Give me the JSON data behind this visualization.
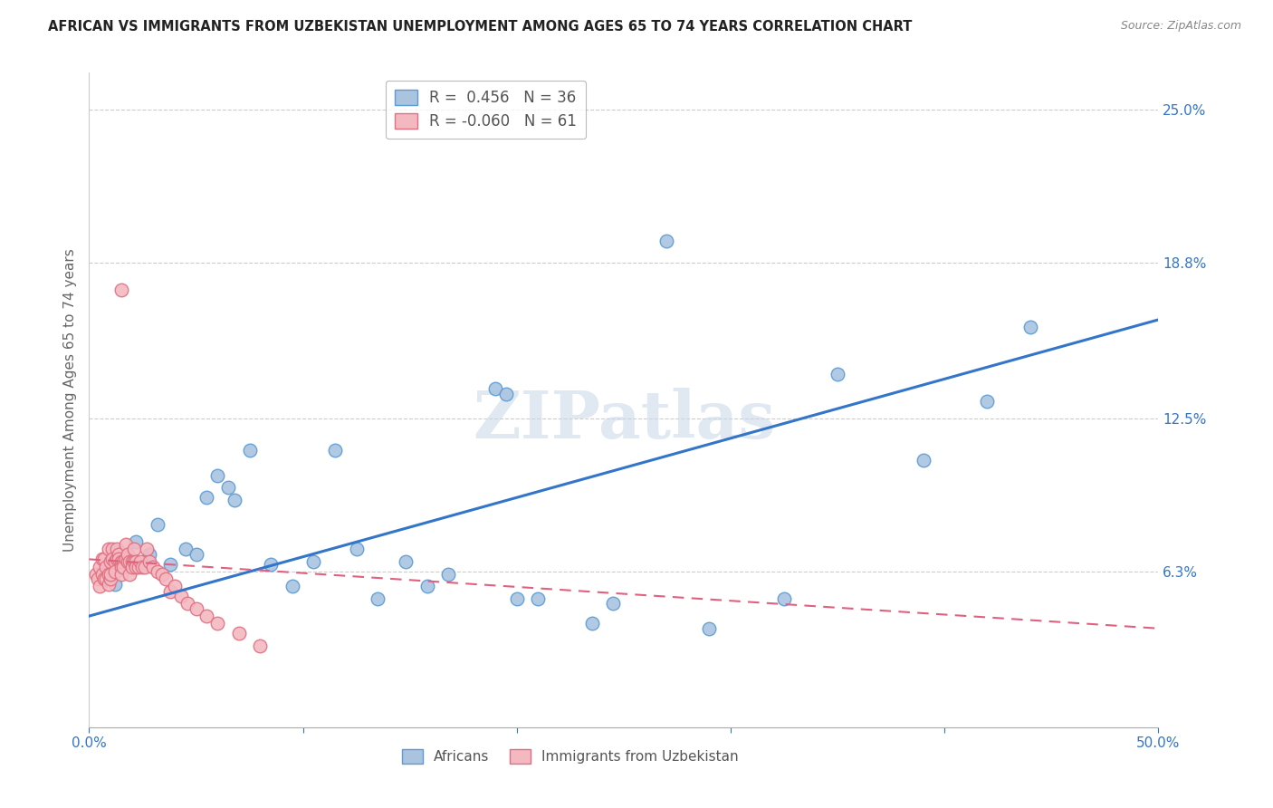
{
  "title": "AFRICAN VS IMMIGRANTS FROM UZBEKISTAN UNEMPLOYMENT AMONG AGES 65 TO 74 YEARS CORRELATION CHART",
  "source": "Source: ZipAtlas.com",
  "ylabel": "Unemployment Among Ages 65 to 74 years",
  "xlim": [
    0.0,
    0.5
  ],
  "ylim": [
    0.0,
    0.265
  ],
  "ytick_labels_right": [
    "25.0%",
    "18.8%",
    "12.5%",
    "6.3%"
  ],
  "ytick_vals_right": [
    0.25,
    0.188,
    0.125,
    0.063
  ],
  "watermark": "ZIPatlas",
  "africans_R": 0.456,
  "africans_N": 36,
  "uzbekistan_R": -0.06,
  "uzbekistan_N": 61,
  "africans_color": "#aac4e0",
  "africans_edge_color": "#5b9bd5",
  "uzbekistan_color": "#f4b8c1",
  "uzbekistan_edge_color": "#e07080",
  "trend_african_color": "#3375c8",
  "trend_uzbekistan_color": "#e06080",
  "africans_x": [
    0.008,
    0.012,
    0.018,
    0.022,
    0.028,
    0.032,
    0.038,
    0.045,
    0.05,
    0.055,
    0.06,
    0.065,
    0.068,
    0.075,
    0.085,
    0.095,
    0.105,
    0.115,
    0.125,
    0.135,
    0.148,
    0.158,
    0.168,
    0.19,
    0.195,
    0.2,
    0.21,
    0.235,
    0.245,
    0.27,
    0.29,
    0.325,
    0.35,
    0.39,
    0.42,
    0.44
  ],
  "africans_y": [
    0.063,
    0.058,
    0.067,
    0.075,
    0.07,
    0.082,
    0.066,
    0.072,
    0.07,
    0.093,
    0.102,
    0.097,
    0.092,
    0.112,
    0.066,
    0.057,
    0.067,
    0.112,
    0.072,
    0.052,
    0.067,
    0.057,
    0.062,
    0.137,
    0.135,
    0.052,
    0.052,
    0.042,
    0.05,
    0.197,
    0.04,
    0.052,
    0.143,
    0.108,
    0.132,
    0.162
  ],
  "uzbekistan_x": [
    0.003,
    0.004,
    0.005,
    0.005,
    0.006,
    0.006,
    0.007,
    0.007,
    0.008,
    0.008,
    0.009,
    0.009,
    0.009,
    0.01,
    0.01,
    0.01,
    0.011,
    0.011,
    0.012,
    0.012,
    0.013,
    0.013,
    0.014,
    0.014,
    0.015,
    0.015,
    0.015,
    0.016,
    0.016,
    0.017,
    0.017,
    0.018,
    0.018,
    0.019,
    0.019,
    0.02,
    0.02,
    0.021,
    0.021,
    0.022,
    0.022,
    0.023,
    0.024,
    0.025,
    0.026,
    0.027,
    0.028,
    0.03,
    0.032,
    0.034,
    0.036,
    0.038,
    0.04,
    0.043,
    0.046,
    0.05,
    0.055,
    0.06,
    0.07,
    0.08,
    0.015
  ],
  "uzbekistan_y": [
    0.062,
    0.06,
    0.057,
    0.065,
    0.062,
    0.068,
    0.06,
    0.068,
    0.06,
    0.065,
    0.058,
    0.062,
    0.072,
    0.067,
    0.06,
    0.062,
    0.072,
    0.068,
    0.067,
    0.063,
    0.072,
    0.068,
    0.07,
    0.068,
    0.067,
    0.065,
    0.062,
    0.067,
    0.065,
    0.074,
    0.068,
    0.067,
    0.07,
    0.067,
    0.062,
    0.067,
    0.065,
    0.067,
    0.072,
    0.067,
    0.065,
    0.065,
    0.067,
    0.065,
    0.065,
    0.072,
    0.067,
    0.065,
    0.063,
    0.062,
    0.06,
    0.055,
    0.057,
    0.053,
    0.05,
    0.048,
    0.045,
    0.042,
    0.038,
    0.033,
    0.177
  ],
  "trend_af_x0": 0.0,
  "trend_af_y0": 0.045,
  "trend_af_x1": 0.5,
  "trend_af_y1": 0.165,
  "trend_uz_x0": 0.0,
  "trend_uz_y0": 0.068,
  "trend_uz_x1": 0.5,
  "trend_uz_y1": 0.04,
  "background_color": "#ffffff",
  "grid_color": "#cccccc"
}
